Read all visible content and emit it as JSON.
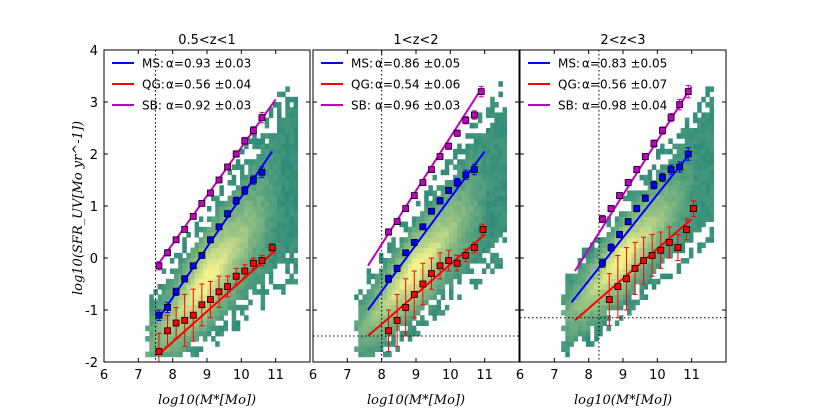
{
  "chart_data": {
    "type": "scatter",
    "figure": {
      "ylabel": "log10(SFR_UV[Mo yr^-1])",
      "xlabel": "log10(M*[Mo])",
      "xlim": [
        6,
        12
      ],
      "ylim": [
        -2,
        4
      ],
      "xticks": [
        "6",
        "7",
        "8",
        "9",
        "10",
        "11"
      ],
      "yticks": [
        "-2",
        "-1",
        "0",
        "1",
        "2",
        "3",
        "4"
      ],
      "colors": {
        "MS": "#0000ff",
        "QG": "#ff0000",
        "SB": "#bf00bf",
        "heat_low": "#2e8b7a",
        "heat_high": "#f2f28c"
      }
    },
    "panels": [
      {
        "title": "0.5<z<1",
        "mass_limit": 7.5,
        "sfr_limit": null,
        "legend": [
          {
            "key": "MS",
            "label": "MS:",
            "alpha": "α=0.93 ±0.03"
          },
          {
            "key": "QG",
            "label": "QG:",
            "alpha": "α=0.56 ±0.04"
          },
          {
            "key": "SB",
            "label": "SB:",
            "alpha": "α=0.92 ±0.03"
          }
        ],
        "fits": {
          "MS": {
            "x": [
              7.6,
              10.9
            ],
            "y": [
              -1.15,
              2.05
            ]
          },
          "QG": {
            "x": [
              7.6,
              11.0
            ],
            "y": [
              -1.85,
              0.15
            ]
          },
          "SB": {
            "x": [
              7.6,
              11.0
            ],
            "y": [
              -0.1,
              3.05
            ]
          }
        },
        "points": {
          "MS": {
            "x": [
              7.6,
              7.85,
              8.1,
              8.35,
              8.6,
              8.85,
              9.1,
              9.35,
              9.6,
              9.85,
              10.1,
              10.35,
              10.6
            ],
            "y": [
              -1.1,
              -0.95,
              -0.65,
              -0.4,
              -0.15,
              0.05,
              0.35,
              0.6,
              0.85,
              1.1,
              1.3,
              1.5,
              1.65
            ],
            "err": [
              0.1,
              0.1,
              0.07,
              0.06,
              0.05,
              0.05,
              0.05,
              0.05,
              0.06,
              0.07,
              0.08,
              0.08,
              0.1
            ]
          },
          "QG": {
            "x": [
              7.6,
              7.85,
              8.1,
              8.35,
              8.6,
              8.85,
              9.1,
              9.35,
              9.6,
              9.85,
              10.1,
              10.35,
              10.6,
              10.9
            ],
            "y": [
              -1.8,
              -1.4,
              -1.25,
              -1.2,
              -1.1,
              -0.9,
              -0.8,
              -0.65,
              -0.55,
              -0.35,
              -0.25,
              -0.1,
              -0.05,
              0.2
            ],
            "err": [
              0.35,
              0.3,
              0.3,
              0.5,
              0.5,
              0.4,
              0.35,
              0.3,
              0.2,
              0.15,
              0.12,
              0.1,
              0.1,
              0.08
            ]
          },
          "SB": {
            "x": [
              7.6,
              7.85,
              8.1,
              8.35,
              8.6,
              8.85,
              9.1,
              9.35,
              9.6,
              9.85,
              10.1,
              10.35,
              10.6
            ],
            "y": [
              -0.15,
              0.1,
              0.35,
              0.55,
              0.8,
              1.05,
              1.25,
              1.5,
              1.75,
              2.0,
              2.25,
              2.45,
              2.7
            ],
            "err": [
              0.08,
              0.06,
              0.05,
              0.05,
              0.05,
              0.05,
              0.05,
              0.05,
              0.05,
              0.06,
              0.07,
              0.08,
              0.1
            ]
          }
        }
      },
      {
        "title": "1<z<2",
        "mass_limit": 8.0,
        "sfr_limit": -1.5,
        "legend": [
          {
            "key": "MS",
            "label": "MS:",
            "alpha": "α=0.86 ±0.05"
          },
          {
            "key": "QG",
            "label": "QG:",
            "alpha": "α=0.54 ±0.06"
          },
          {
            "key": "SB",
            "label": "SB:",
            "alpha": "α=0.96 ±0.03"
          }
        ],
        "fits": {
          "MS": {
            "x": [
              7.6,
              11.0
            ],
            "y": [
              -1.0,
              2.05
            ]
          },
          "QG": {
            "x": [
              7.6,
              11.0
            ],
            "y": [
              -1.5,
              0.45
            ]
          },
          "SB": {
            "x": [
              7.6,
              10.9
            ],
            "y": [
              -0.15,
              3.25
            ]
          }
        },
        "points": {
          "MS": {
            "x": [
              8.2,
              8.45,
              8.7,
              8.95,
              9.2,
              9.45,
              9.7,
              9.95,
              10.2,
              10.45,
              10.7
            ],
            "y": [
              -0.4,
              -0.2,
              0.1,
              0.3,
              0.6,
              0.9,
              1.1,
              1.3,
              1.45,
              1.6,
              1.7
            ],
            "err": [
              0.07,
              0.06,
              0.05,
              0.05,
              0.05,
              0.05,
              0.06,
              0.06,
              0.08,
              0.09,
              0.1
            ]
          },
          "QG": {
            "x": [
              8.2,
              8.45,
              8.7,
              8.95,
              9.2,
              9.45,
              9.7,
              9.95,
              10.2,
              10.45,
              10.7,
              10.95
            ],
            "y": [
              -1.4,
              -1.2,
              -0.95,
              -0.7,
              -0.5,
              -0.3,
              -0.15,
              -0.05,
              -0.1,
              0.05,
              0.2,
              0.55
            ],
            "err": [
              0.4,
              0.5,
              0.55,
              0.45,
              0.4,
              0.3,
              0.25,
              0.2,
              0.15,
              0.12,
              0.1,
              0.1
            ]
          },
          "SB": {
            "x": [
              8.2,
              8.45,
              8.7,
              8.95,
              9.2,
              9.45,
              9.7,
              9.95,
              10.2,
              10.45,
              10.7,
              10.9
            ],
            "y": [
              0.5,
              0.7,
              0.95,
              1.2,
              1.45,
              1.7,
              1.95,
              2.15,
              2.4,
              2.65,
              2.75,
              3.2
            ],
            "err": [
              0.06,
              0.05,
              0.05,
              0.05,
              0.05,
              0.05,
              0.05,
              0.06,
              0.06,
              0.07,
              0.08,
              0.1
            ]
          }
        }
      },
      {
        "title": "2<z<3",
        "mass_limit": 8.3,
        "sfr_limit": -1.15,
        "legend": [
          {
            "key": "MS",
            "label": "MS:",
            "alpha": "α=0.83 ±0.05"
          },
          {
            "key": "QG",
            "label": "QG:",
            "alpha": "α=0.56 ±0.07"
          },
          {
            "key": "SB",
            "label": "SB:",
            "alpha": "α=0.98 ±0.04"
          }
        ],
        "fits": {
          "MS": {
            "x": [
              7.5,
              11.0
            ],
            "y": [
              -0.85,
              2.05
            ]
          },
          "QG": {
            "x": [
              7.6,
              11.0
            ],
            "y": [
              -1.2,
              0.75
            ]
          },
          "SB": {
            "x": [
              7.6,
              11.0
            ],
            "y": [
              -0.25,
              3.3
            ]
          }
        },
        "points": {
          "MS": {
            "x": [
              8.4,
              8.65,
              8.9,
              9.15,
              9.4,
              9.65,
              9.9,
              10.15,
              10.4,
              10.65,
              10.9
            ],
            "y": [
              -0.1,
              0.2,
              0.45,
              0.7,
              0.95,
              1.15,
              1.4,
              1.55,
              1.7,
              1.75,
              2.0
            ],
            "err": [
              0.08,
              0.07,
              0.06,
              0.06,
              0.06,
              0.06,
              0.07,
              0.08,
              0.09,
              0.1,
              0.12
            ]
          },
          "QG": {
            "x": [
              8.6,
              8.85,
              9.1,
              9.35,
              9.6,
              9.85,
              10.1,
              10.35,
              10.6,
              10.85,
              11.05
            ],
            "y": [
              -0.8,
              -0.55,
              -0.4,
              -0.2,
              -0.05,
              0.05,
              0.15,
              0.3,
              0.2,
              0.55,
              0.95
            ],
            "err": [
              0.5,
              0.6,
              0.6,
              0.5,
              0.45,
              0.4,
              0.35,
              0.3,
              0.25,
              0.2,
              0.15
            ]
          },
          "SB": {
            "x": [
              8.4,
              8.65,
              8.9,
              9.15,
              9.4,
              9.65,
              9.9,
              10.15,
              10.4,
              10.65,
              10.9
            ],
            "y": [
              0.75,
              0.95,
              1.2,
              1.45,
              1.7,
              1.95,
              2.2,
              2.45,
              2.7,
              2.95,
              3.2
            ],
            "err": [
              0.07,
              0.06,
              0.06,
              0.06,
              0.06,
              0.06,
              0.07,
              0.07,
              0.08,
              0.1,
              0.12
            ]
          }
        }
      }
    ]
  }
}
